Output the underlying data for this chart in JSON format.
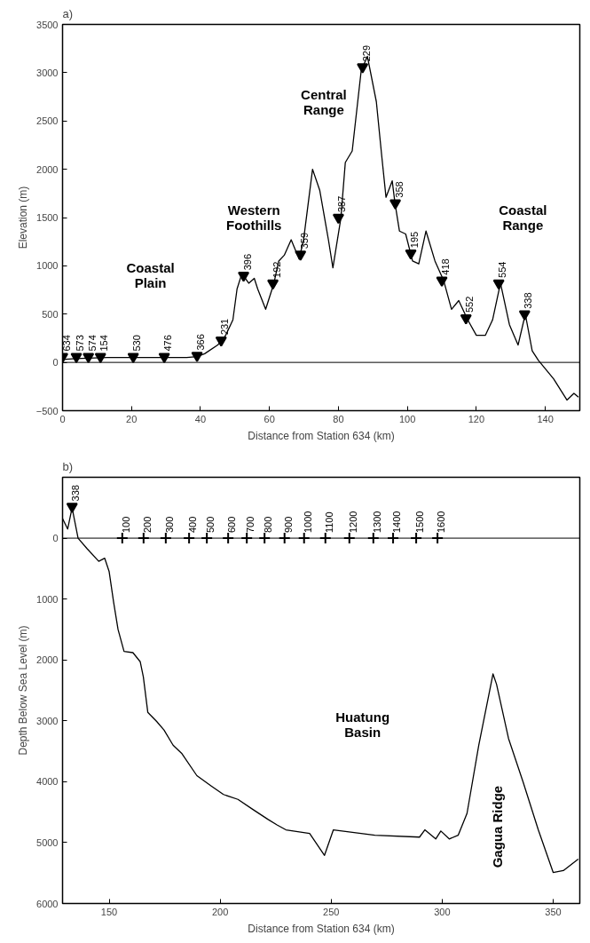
{
  "chart_data": [
    {
      "type": "line",
      "title": "a)",
      "xlabel": "Distance from Station 634 (km)",
      "ylabel": "Elevation (m)",
      "xlim": [
        0,
        150
      ],
      "ylim": [
        -500,
        3500
      ],
      "xticks": [
        0,
        20,
        40,
        60,
        80,
        100,
        120,
        140
      ],
      "yticks": [
        -500,
        0,
        500,
        1000,
        1500,
        2000,
        2500,
        3000,
        3500
      ],
      "grid": false,
      "series": [
        {
          "color": "#000000",
          "x": [
            0,
            3.7,
            13,
            36,
            39,
            41.2,
            45,
            47.3,
            49.4,
            50.6,
            52,
            54,
            55.6,
            56.6,
            58.9,
            61.3,
            62.7,
            64.3,
            66.3,
            68.6,
            69.9,
            72.5,
            74.6,
            77.1,
            78.4,
            80.7,
            82,
            84,
            86.6,
            88.4,
            91,
            92.5,
            93.8,
            95.6,
            96.4,
            97.7,
            99.5,
            101.5,
            103.3,
            105.4,
            108,
            110.5,
            112.8,
            114.9,
            117.5,
            120,
            122.6,
            124.7,
            127,
            129.6,
            132.1,
            134.2,
            136.2,
            138,
            142.4,
            146.3,
            148.3,
            149.6
          ],
          "values": [
            30,
            40,
            50,
            50,
            60,
            90,
            180,
            280,
            440,
            760,
            920,
            820,
            870,
            760,
            550,
            820,
            1050,
            1110,
            1270,
            1070,
            1270,
            2000,
            1780,
            1270,
            980,
            1490,
            2070,
            2190,
            3020,
            3170,
            2700,
            2160,
            1710,
            1880,
            1650,
            1360,
            1330,
            1050,
            1020,
            1360,
            1050,
            850,
            550,
            640,
            440,
            280,
            280,
            440,
            820,
            390,
            180,
            500,
            120,
            20,
            -170,
            -390,
            -320,
            -360
          ]
        },
        {
          "type": "scatter",
          "marker": "triangle",
          "color": "#000000",
          "x": [
            0,
            4,
            7.5,
            11,
            20.5,
            29.5,
            39,
            46,
            52.5,
            61,
            69,
            80,
            87,
            96.5,
            101,
            110,
            117,
            126.5,
            134
          ],
          "values": [
            60,
            60,
            60,
            60,
            60,
            60,
            70,
            230,
            900,
            820,
            1120,
            1500,
            3060,
            1650,
            1130,
            850,
            460,
            820,
            500
          ]
        }
      ],
      "ref_lines": [
        {
          "axis": "y",
          "value": 0,
          "color": "#000000"
        }
      ],
      "annotations": [
        "Coastal\nPlain",
        "Western\nFoothills",
        "Central\nRange",
        "Coastal\nRange",
        {
          "text": "634",
          "x": 0,
          "y": 60
        },
        {
          "text": "573",
          "x": 4,
          "y": 60
        },
        {
          "text": "574",
          "x": 7.5,
          "y": 60
        },
        {
          "text": "154",
          "x": 11,
          "y": 60
        },
        {
          "text": "530",
          "x": 20.5,
          "y": 60
        },
        {
          "text": "476",
          "x": 29.5,
          "y": 60
        },
        {
          "text": "366",
          "x": 39,
          "y": 70
        },
        {
          "text": "231",
          "x": 46,
          "y": 230
        },
        {
          "text": "396",
          "x": 52.5,
          "y": 900
        },
        {
          "text": "192",
          "x": 61,
          "y": 820
        },
        {
          "text": "359",
          "x": 69,
          "y": 1120
        },
        {
          "text": "387",
          "x": 80,
          "y": 1500
        },
        {
          "text": "229",
          "x": 87,
          "y": 3060
        },
        {
          "text": "358",
          "x": 96.5,
          "y": 1650
        },
        {
          "text": "195",
          "x": 101,
          "y": 1130
        },
        {
          "text": "418",
          "x": 110,
          "y": 850
        },
        {
          "text": "552",
          "x": 117,
          "y": 460
        },
        {
          "text": "554",
          "x": 126.5,
          "y": 820
        },
        {
          "text": "338",
          "x": 134,
          "y": 500
        }
      ]
    },
    {
      "type": "line",
      "title": "b)",
      "xlabel": "Distance from Station 634 (km)",
      "ylabel": "Depth Below Sea Level (m)",
      "xlim": [
        129,
        362
      ],
      "ylim": [
        6000,
        -1000
      ],
      "xticks": [
        150,
        200,
        250,
        300,
        350
      ],
      "yticks": [
        0,
        1000,
        2000,
        3000,
        4000,
        5000,
        6000
      ],
      "grid": false,
      "series": [
        {
          "color": "#000000",
          "x": [
            129,
            131.3,
            133.3,
            136,
            140,
            145.3,
            148,
            150,
            152,
            154,
            156.7,
            160.7,
            164,
            165.4,
            167.4,
            171.4,
            174.7,
            178.8,
            182.8,
            189.5,
            196,
            201.5,
            208,
            214.9,
            221.6,
            225.6,
            229.6,
            240.3,
            247,
            251,
            269.7,
            289.8,
            292.2,
            297.1,
            299.4,
            303.2,
            307.2,
            311.2,
            316.5,
            322.9,
            324.5,
            329.9,
            336.5,
            343.3,
            350,
            354.6,
            361.3
          ],
          "values": [
            -320,
            -150,
            -500,
            0,
            170,
            380,
            330,
            550,
            1050,
            1500,
            1860,
            1880,
            2030,
            2280,
            2860,
            3010,
            3150,
            3400,
            3540,
            3900,
            4070,
            4210,
            4290,
            4460,
            4620,
            4710,
            4790,
            4850,
            5210,
            4790,
            4880,
            4910,
            4790,
            4940,
            4810,
            4940,
            4880,
            4520,
            3400,
            2230,
            2400,
            3290,
            4010,
            4790,
            5490,
            5460,
            5270
          ]
        },
        {
          "type": "scatter",
          "marker": "triangle",
          "color": "#000000",
          "x": [
            133.3
          ],
          "values": [
            -520
          ]
        },
        {
          "type": "scatter",
          "marker": "cross",
          "color": "#000000",
          "x": [
            155.9,
            165.5,
            175.5,
            186,
            194,
            203.6,
            212,
            220,
            229,
            237.8,
            247.4,
            258.2,
            269,
            277.9,
            288.3,
            297.9
          ],
          "values": [
            0,
            0,
            0,
            0,
            0,
            0,
            0,
            0,
            0,
            0,
            0,
            0,
            0,
            0,
            0,
            0
          ]
        }
      ],
      "ref_lines": [
        {
          "axis": "y",
          "value": 0,
          "color": "#000000"
        }
      ],
      "annotations": [
        "Huatung\nBasin",
        "Gagua Ridge",
        {
          "text": "338",
          "x": 133.3,
          "y": -520
        },
        {
          "text": "100",
          "x": 155.9,
          "y": 0
        },
        {
          "text": "200",
          "x": 165.5,
          "y": 0
        },
        {
          "text": "300",
          "x": 175.5,
          "y": 0
        },
        {
          "text": "400",
          "x": 186,
          "y": 0
        },
        {
          "text": "500",
          "x": 194,
          "y": 0
        },
        {
          "text": "600",
          "x": 203.6,
          "y": 0
        },
        {
          "text": "700",
          "x": 212,
          "y": 0
        },
        {
          "text": "800",
          "x": 220,
          "y": 0
        },
        {
          "text": "900",
          "x": 229,
          "y": 0
        },
        {
          "text": "1000",
          "x": 237.8,
          "y": 0
        },
        {
          "text": "1100",
          "x": 247.4,
          "y": 0
        },
        {
          "text": "1200",
          "x": 258.2,
          "y": 0
        },
        {
          "text": "1300",
          "x": 269,
          "y": 0
        },
        {
          "text": "1400",
          "x": 277.9,
          "y": 0
        },
        {
          "text": "1500",
          "x": 288.3,
          "y": 0
        },
        {
          "text": "1600",
          "x": 297.9,
          "y": 0
        }
      ]
    }
  ]
}
